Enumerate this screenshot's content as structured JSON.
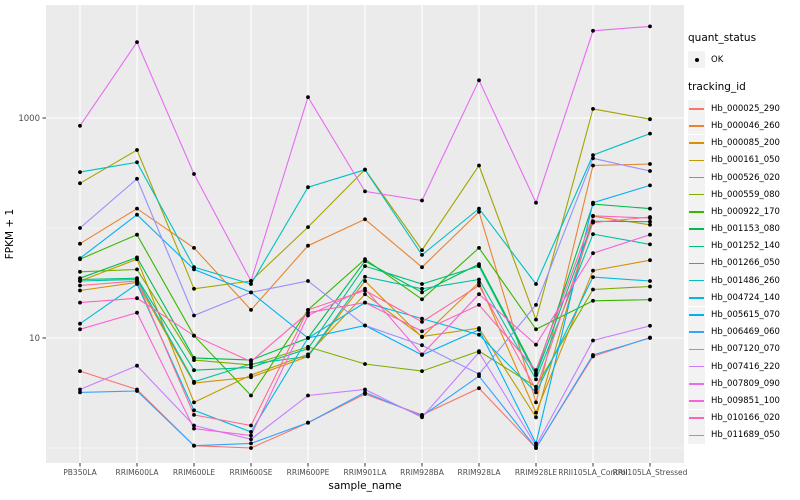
{
  "figure": {
    "background": "#FFFFFF",
    "panel_background": "#EBEBEB",
    "grid_color": "#FFFFFF",
    "tick_text_color": "#4D4D4D",
    "point_color": "#000000"
  },
  "legend": {
    "quant_status": {
      "title": "quant_status",
      "items": [
        {
          "label": "OK",
          "marker": "black-point"
        }
      ]
    },
    "tracking_id": {
      "title": "tracking_id"
    }
  },
  "chart_data": {
    "type": "line",
    "title": "",
    "xlabel": "sample_name",
    "ylabel": "FPKM + 1",
    "y_scale": "log10",
    "y_axis_ticks": [
      {
        "value": 10,
        "label": "10"
      },
      {
        "value": 1000,
        "label": "1000"
      }
    ],
    "y_major_gridlines": [
      10,
      1000
    ],
    "y_minor_gridlines": [
      1,
      100
    ],
    "grid": true,
    "legend_position": "right",
    "categories": [
      "PB350LA",
      "RRIM600LA",
      "RRIM600LE",
      "RRIM600SE",
      "RRIM600PE",
      "RRIM901LA",
      "RRIM928BA",
      "RRIM928LA",
      "RRIM928LE",
      "RRII105LA_Control",
      "RRII105LA_Stressed"
    ],
    "series": [
      {
        "tracking_id": "Hb_000025_290",
        "quant_status": "OK",
        "color": "#F8766D",
        "values": [
          5.0,
          3.4,
          1.05,
          1.0,
          1.7,
          3.1,
          2.0,
          3.5,
          1.0,
          6.8,
          10.1
        ]
      },
      {
        "tracking_id": "Hb_000046_260",
        "quant_status": "OK",
        "color": "#EA8331",
        "values": [
          72,
          150,
          66,
          18,
          69,
          120,
          44,
          140,
          2.6,
          370,
          382
        ]
      },
      {
        "tracking_id": "Hb_000085_200",
        "quant_status": "OK",
        "color": "#D89000",
        "values": [
          27,
          32,
          3.9,
          4.4,
          6.8,
          33,
          10.2,
          32,
          2.1,
          41,
          51
        ]
      },
      {
        "tracking_id": "Hb_000161_050",
        "quant_status": "OK",
        "color": "#C09B00",
        "values": [
          33,
          52,
          2.6,
          4.6,
          7.1,
          25,
          10.3,
          12.3,
          1.9,
          128,
          107
        ]
      },
      {
        "tracking_id": "Hb_000526_020",
        "quant_status": "OK",
        "color": "#A3A500",
        "values": [
          255,
          512,
          28,
          33,
          102,
          340,
          63,
          370,
          14.7,
          1210,
          975
        ]
      },
      {
        "tracking_id": "Hb_000559_080",
        "quant_status": "OK",
        "color": "#7CAE00",
        "values": [
          40,
          42,
          6.3,
          5.7,
          8.3,
          5.8,
          5.0,
          7.6,
          3.6,
          27.6,
          29.4
        ]
      },
      {
        "tracking_id": "Hb_000922_170",
        "quant_status": "OK",
        "color": "#39B600",
        "values": [
          52,
          87,
          10.5,
          3.0,
          18,
          52,
          22.5,
          66,
          12,
          21.8,
          22.3
        ]
      },
      {
        "tracking_id": "Hb_001153_080",
        "quant_status": "OK",
        "color": "#00BB4E",
        "values": [
          35,
          54,
          6.6,
          6.3,
          10,
          50,
          26,
          47,
          4.8,
          165,
          150
        ]
      },
      {
        "tracking_id": "Hb_001252_140",
        "quant_status": "OK",
        "color": "#00BF7D",
        "values": [
          34,
          35,
          5.1,
          5.4,
          8.0,
          45,
          31,
          45,
          4.6,
          115,
          114
        ]
      },
      {
        "tracking_id": "Hb_001266_050",
        "quant_status": "OK",
        "color": "#00C1A3",
        "values": [
          33,
          34,
          4.0,
          5.8,
          6.8,
          36,
          28,
          34,
          4.2,
          88,
          71
        ]
      },
      {
        "tracking_id": "Hb_001486_260",
        "quant_status": "OK",
        "color": "#00BFC4",
        "values": [
          322,
          396,
          44,
          31,
          235,
          338,
          57,
          150,
          31,
          460,
          722
        ]
      },
      {
        "tracking_id": "Hb_004724_140",
        "quant_status": "OK",
        "color": "#00BAE0",
        "values": [
          13.5,
          31,
          2.2,
          1.4,
          10,
          21,
          15,
          10.7,
          3.2,
          35.8,
          33
        ]
      },
      {
        "tracking_id": "Hb_005615_070",
        "quant_status": "OK",
        "color": "#00B0F6",
        "values": [
          53,
          132,
          42,
          26,
          10,
          13,
          7.0,
          11.9,
          1.1,
          170,
          244
        ]
      },
      {
        "tracking_id": "Hb_006469_060",
        "quant_status": "OK",
        "color": "#35A2FF",
        "values": [
          3.2,
          3.3,
          1.05,
          1.1,
          1.7,
          3.2,
          1.95,
          4.5,
          1.0,
          7.0,
          10
        ]
      },
      {
        "tracking_id": "Hb_007120_070",
        "quant_status": "OK",
        "color": "#9590FF",
        "values": [
          100,
          280,
          16,
          26,
          33,
          13,
          8.6,
          4.7,
          20,
          430,
          330
        ]
      },
      {
        "tracking_id": "Hb_007416_220",
        "quant_status": "OK",
        "color": "#C77CFF",
        "values": [
          3.4,
          5.6,
          1.6,
          1.2,
          3.0,
          3.4,
          1.9,
          7.4,
          1.05,
          9.5,
          12.9
        ]
      },
      {
        "tracking_id": "Hb_007809_090",
        "quant_status": "OK",
        "color": "#E76BF3",
        "values": [
          850,
          4900,
          310,
          33,
          1550,
          215,
          178,
          2200,
          170,
          6200,
          6800
        ]
      },
      {
        "tracking_id": "Hb_009851_100",
        "quant_status": "OK",
        "color": "#FA62DB",
        "values": [
          12,
          17,
          1.5,
          1.3,
          16,
          28,
          7.1,
          25,
          8.7,
          59,
          87
        ]
      },
      {
        "tracking_id": "Hb_010166_020",
        "quant_status": "OK",
        "color": "#FF62BC",
        "values": [
          21,
          23,
          10.5,
          6.1,
          17,
          21,
          11.5,
          20,
          5.1,
          129,
          123
        ]
      },
      {
        "tracking_id": "Hb_011689_050",
        "quant_status": "OK",
        "color": "#FF6A98",
        "values": [
          30,
          33,
          2.0,
          1.6,
          18,
          27,
          14,
          30,
          3.4,
          112,
          126
        ]
      }
    ]
  }
}
